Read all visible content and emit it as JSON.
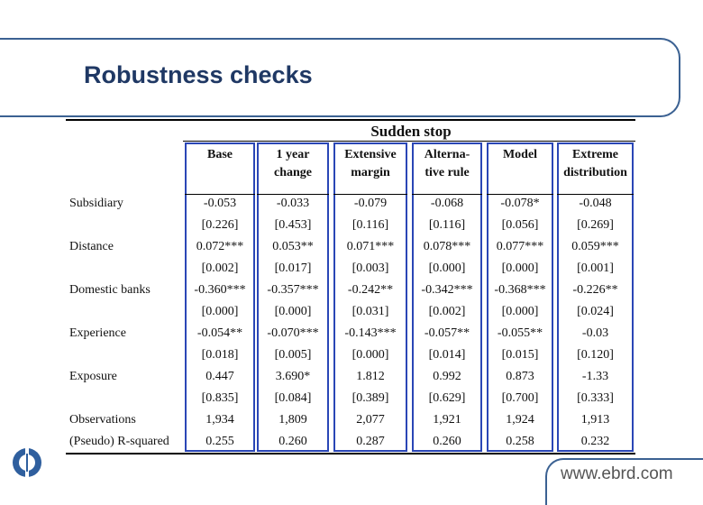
{
  "slide": {
    "title": "Robustness checks",
    "footer_url": "www.ebrd.com"
  },
  "table": {
    "panel_title": "Sudden stop",
    "columns": [
      "Base",
      "1 year\nchange",
      "Extensive\nmargin",
      "Alterna-\ntive rule",
      "Model",
      "Extreme\ndistribution"
    ],
    "rows": [
      {
        "label": "Subsidiary",
        "values": [
          "-0.053",
          "-0.033",
          "-0.079",
          "-0.068",
          "-0.078*",
          "-0.048"
        ]
      },
      {
        "label": "",
        "values": [
          "[0.226]",
          "[0.453]",
          "[0.116]",
          "[0.116]",
          "[0.056]",
          "[0.269]"
        ]
      },
      {
        "label": "Distance",
        "values": [
          "0.072***",
          "0.053**",
          "0.071***",
          "0.078***",
          "0.077***",
          "0.059***"
        ]
      },
      {
        "label": "",
        "values": [
          "[0.002]",
          "[0.017]",
          "[0.003]",
          "[0.000]",
          "[0.000]",
          "[0.001]"
        ]
      },
      {
        "label": "Domestic banks",
        "values": [
          "-0.360***",
          "-0.357***",
          "-0.242**",
          "-0.342***",
          "-0.368***",
          "-0.226**"
        ]
      },
      {
        "label": "",
        "values": [
          "[0.000]",
          "[0.000]",
          "[0.031]",
          "[0.002]",
          "[0.000]",
          "[0.024]"
        ]
      },
      {
        "label": "Experience",
        "values": [
          "-0.054**",
          "-0.070***",
          "-0.143***",
          "-0.057**",
          "-0.055**",
          "-0.03"
        ]
      },
      {
        "label": "",
        "values": [
          "[0.018]",
          "[0.005]",
          "[0.000]",
          "[0.014]",
          "[0.015]",
          "[0.120]"
        ]
      },
      {
        "label": "Exposure",
        "values": [
          "0.447",
          "3.690*",
          "1.812",
          "0.992",
          "0.873",
          "-1.33"
        ]
      },
      {
        "label": "",
        "values": [
          "[0.835]",
          "[0.084]",
          "[0.389]",
          "[0.629]",
          "[0.700]",
          "[0.333]"
        ]
      },
      {
        "label": "Observations",
        "values": [
          "1,934",
          "1,809",
          "2,077",
          "1,921",
          "1,924",
          "1,913"
        ]
      },
      {
        "label": "(Pseudo) R-squared",
        "values": [
          "0.255",
          "0.260",
          "0.287",
          "0.260",
          "0.258",
          "0.232"
        ]
      }
    ]
  },
  "colors": {
    "title": "#1f3864",
    "frame": "#3b6192",
    "column_box": "#2a46b6"
  },
  "icons": {
    "logo": "ebrd-logo-icon"
  }
}
